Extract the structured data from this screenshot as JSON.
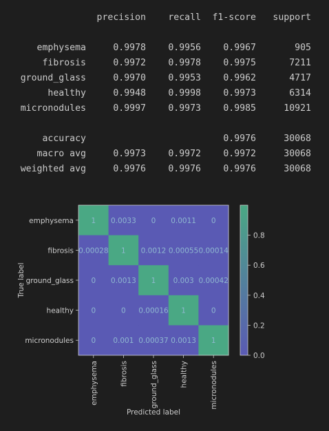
{
  "report": {
    "headers": [
      "precision",
      "recall",
      "f1-score",
      "support"
    ],
    "rows": [
      {
        "label": "emphysema",
        "precision": "0.9978",
        "recall": "0.9956",
        "f1": "0.9967",
        "support": "905"
      },
      {
        "label": "fibrosis",
        "precision": "0.9972",
        "recall": "0.9978",
        "f1": "0.9975",
        "support": "7211"
      },
      {
        "label": "ground_glass",
        "precision": "0.9970",
        "recall": "0.9953",
        "f1": "0.9962",
        "support": "4717"
      },
      {
        "label": "healthy",
        "precision": "0.9948",
        "recall": "0.9998",
        "f1": "0.9973",
        "support": "6314"
      },
      {
        "label": "micronodules",
        "precision": "0.9997",
        "recall": "0.9973",
        "f1": "0.9985",
        "support": "10921"
      }
    ],
    "summary": [
      {
        "label": "accuracy",
        "precision": "",
        "recall": "",
        "f1": "0.9976",
        "support": "30068"
      },
      {
        "label": "macro avg",
        "precision": "0.9973",
        "recall": "0.9972",
        "f1": "0.9972",
        "support": "30068"
      },
      {
        "label": "weighted avg",
        "precision": "0.9976",
        "recall": "0.9976",
        "f1": "0.9976",
        "support": "30068"
      }
    ]
  },
  "chart_data": {
    "type": "heatmap",
    "title": "",
    "xlabel": "Predicted label",
    "ylabel": "True label",
    "categories": [
      "emphysema",
      "fibrosis",
      "ground_glass",
      "healthy",
      "micronodules"
    ],
    "matrix": [
      [
        "1",
        "0.0033",
        "0",
        "0.0011",
        "0"
      ],
      [
        "0.00028",
        "1",
        "0.0012",
        "0.00055",
        "0.00014"
      ],
      [
        "0",
        "0.0013",
        "1",
        "0.003",
        "0.00042"
      ],
      [
        "0",
        "0",
        "0.00016",
        "1",
        "0"
      ],
      [
        "0",
        "0.001",
        "0.00037",
        "0.0013",
        "1"
      ]
    ],
    "colorbar": {
      "ticks": [
        "0.0",
        "0.2",
        "0.4",
        "0.6",
        "0.8"
      ],
      "range": [
        0,
        1
      ]
    },
    "colors": {
      "low": "#5a5ab4",
      "high": "#4aa884"
    }
  }
}
